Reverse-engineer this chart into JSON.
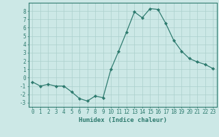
{
  "x": [
    0,
    1,
    2,
    3,
    4,
    5,
    6,
    7,
    8,
    9,
    10,
    11,
    12,
    13,
    14,
    15,
    16,
    17,
    18,
    19,
    20,
    21,
    22,
    23
  ],
  "y": [
    -0.5,
    -1.0,
    -0.8,
    -1.0,
    -1.0,
    -1.7,
    -2.5,
    -2.8,
    -2.2,
    -2.4,
    1.0,
    3.2,
    5.5,
    7.9,
    7.2,
    8.3,
    8.2,
    6.5,
    4.5,
    3.2,
    2.3,
    1.9,
    1.6,
    1.1
  ],
  "line_color": "#2d7a6e",
  "marker": "D",
  "marker_size": 2.2,
  "bg_color": "#cce8e6",
  "grid_color": "#aacfcc",
  "xlabel": "Humidex (Indice chaleur)",
  "xlim": [
    -0.5,
    23.5
  ],
  "ylim": [
    -3.5,
    9.0
  ],
  "yticks": [
    -3,
    -2,
    -1,
    0,
    1,
    2,
    3,
    4,
    5,
    6,
    7,
    8
  ],
  "xticks": [
    0,
    1,
    2,
    3,
    4,
    5,
    6,
    7,
    8,
    9,
    10,
    11,
    12,
    13,
    14,
    15,
    16,
    17,
    18,
    19,
    20,
    21,
    22,
    23
  ],
  "tick_fontsize": 5.5,
  "xlabel_fontsize": 6.5,
  "axis_color": "#2d7a6e",
  "spine_color": "#2d7a6e",
  "line_width": 0.9,
  "marker_edge_width": 0.4
}
